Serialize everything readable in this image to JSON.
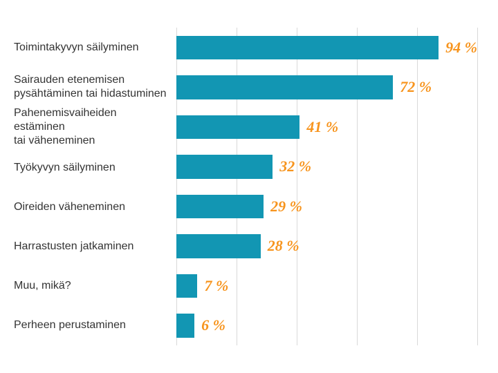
{
  "chart": {
    "type": "bar",
    "orientation": "horizontal",
    "background_color": "#ffffff",
    "bar_color": "#1296b3",
    "value_label_color": "#f7941d",
    "category_label_color": "#333333",
    "grid_color": "#d9d9d9",
    "category_fontsize": 16,
    "value_fontsize": 22,
    "value_fontfamily": "handwritten",
    "xlim": [
      0,
      100
    ],
    "xtick_positions": [
      0,
      20,
      40,
      60,
      80,
      100
    ],
    "bar_height_ratio": 0.6,
    "data": [
      {
        "label": "Toimintakyvyn säilyminen",
        "value": 94,
        "value_text": "94 %"
      },
      {
        "label": "Sairauden etenemisen\npysähtäminen tai hidastuminen",
        "value": 72,
        "value_text": "72 %"
      },
      {
        "label": "Pahenemisvaiheiden estäminen\ntai väheneminen",
        "value": 41,
        "value_text": "41 %"
      },
      {
        "label": "Työkyvyn säilyminen",
        "value": 32,
        "value_text": "32 %"
      },
      {
        "label": "Oireiden väheneminen",
        "value": 29,
        "value_text": "29 %"
      },
      {
        "label": "Harrastusten jatkaminen",
        "value": 28,
        "value_text": "28 %"
      },
      {
        "label": "Muu, mikä?",
        "value": 7,
        "value_text": "7 %"
      },
      {
        "label": "Perheen perustaminen",
        "value": 6,
        "value_text": "6 %"
      }
    ]
  }
}
